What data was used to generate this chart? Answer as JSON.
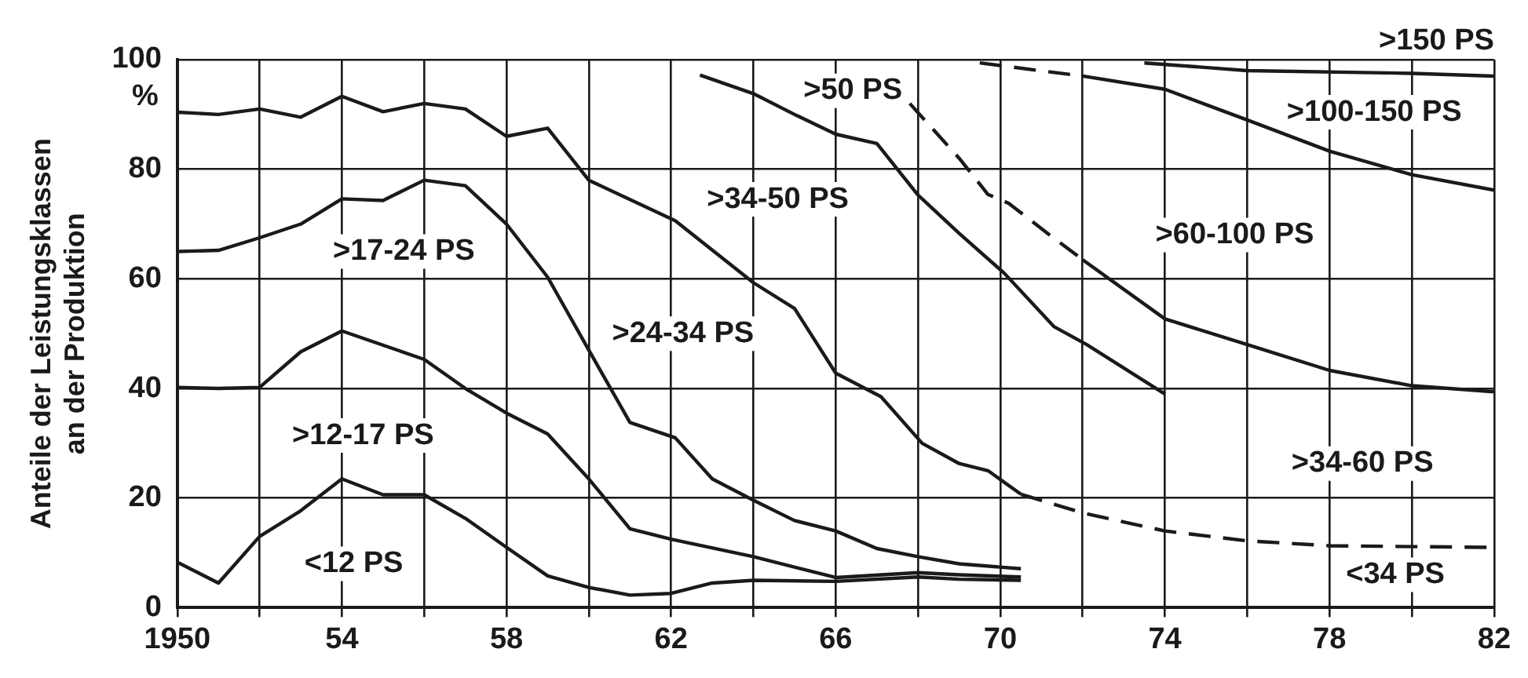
{
  "chart_data": {
    "type": "line",
    "ylabel": "Anteile der Leistungsklassen\nan der Produktion",
    "xlim": [
      1950,
      1982
    ],
    "ylim": [
      0,
      100
    ],
    "xticks": [
      {
        "value": 1950,
        "label": "1950"
      },
      {
        "value": 1952,
        "label": null
      },
      {
        "value": 1954,
        "label": "54"
      },
      {
        "value": 1956,
        "label": null
      },
      {
        "value": 1958,
        "label": "58"
      },
      {
        "value": 1960,
        "label": null
      },
      {
        "value": 1962,
        "label": "62"
      },
      {
        "value": 1964,
        "label": null
      },
      {
        "value": 1966,
        "label": "66"
      },
      {
        "value": 1968,
        "label": null
      },
      {
        "value": 1970,
        "label": "70"
      },
      {
        "value": 1972,
        "label": null
      },
      {
        "value": 1974,
        "label": "74"
      },
      {
        "value": 1976,
        "label": null
      },
      {
        "value": 1978,
        "label": "78"
      },
      {
        "value": 1980,
        "label": null
      },
      {
        "value": 1982,
        "label": "82"
      }
    ],
    "yticks": [
      0,
      20,
      40,
      60,
      80,
      100
    ],
    "grid": true,
    "legend": false,
    "marker": "none",
    "series": [
      {
        "color": "#1a1a1a",
        "line_style": "solid",
        "x": [
          1950,
          1951,
          1952,
          1953,
          1954,
          1955,
          1956,
          1957,
          1958,
          1959,
          1960,
          1962.1,
          1964,
          1965,
          1966,
          1967.1,
          1968.1,
          1969,
          1969.7,
          1970.5
        ],
        "values": [
          90.4,
          90,
          91,
          89.5,
          93.3,
          90.5,
          92,
          91,
          86,
          87.5,
          78,
          70.6,
          59.3,
          54.6,
          42.8,
          38.5,
          30,
          26.3,
          25,
          20.7
        ]
      },
      {
        "color": "#1a1a1a",
        "line_style": "dashed",
        "x": [
          1970.5,
          1972,
          1974,
          1976,
          1978,
          1982
        ],
        "values": [
          20.7,
          17.3,
          14,
          12.2,
          11.3,
          11
        ]
      },
      {
        "color": "#1a1a1a",
        "line_style": "solid",
        "x": [
          1950,
          1951,
          1952,
          1953,
          1954,
          1955,
          1956,
          1957,
          1958,
          1959,
          1960,
          1961,
          1962.1,
          1963,
          1964,
          1965,
          1966,
          1967,
          1968,
          1969,
          1970.5
        ],
        "values": [
          65,
          65.2,
          67.5,
          70,
          74.6,
          74.3,
          78,
          77,
          70,
          60.3,
          47,
          33.8,
          31,
          23.5,
          19.6,
          15.9,
          14,
          10.8,
          9.3,
          8,
          7.1
        ]
      },
      {
        "color": "#1a1a1a",
        "line_style": "solid",
        "x": [
          1950,
          1951,
          1952,
          1953,
          1954,
          1956,
          1957,
          1958,
          1959,
          1960,
          1961,
          1962,
          1964,
          1966,
          1968,
          1969,
          1970.5
        ],
        "values": [
          40.2,
          40,
          40.2,
          46.7,
          50.5,
          45.3,
          40,
          35.5,
          31.7,
          23.5,
          14.4,
          12.5,
          9.3,
          5.5,
          6.4,
          6,
          5.6
        ]
      },
      {
        "color": "#1a1a1a",
        "line_style": "solid",
        "x": [
          1950,
          1951,
          1952,
          1953,
          1954,
          1955,
          1956,
          1957,
          1958,
          1959,
          1960,
          1961,
          1962,
          1963,
          1964,
          1966,
          1968,
          1969,
          1970.5
        ],
        "values": [
          8.3,
          4.5,
          13,
          17.7,
          23.5,
          20.6,
          20.6,
          16.3,
          11,
          5.8,
          3.7,
          2.3,
          2.6,
          4.5,
          5,
          4.8,
          5.6,
          5.2,
          5
        ]
      },
      {
        "color": "#1a1a1a",
        "line_style": "solid",
        "x": [
          1962.7,
          1964,
          1965,
          1966,
          1967,
          1968,
          1969,
          1970.1,
          1971.3,
          1972.1,
          1974
        ],
        "values": [
          97.2,
          93.8,
          90,
          86.4,
          84.7,
          75.3,
          68.3,
          61,
          51.3,
          48,
          39
        ]
      },
      {
        "color": "#1a1a1a",
        "line_style": "dashed",
        "x": [
          1967.8,
          1969,
          1969.7,
          1970.2,
          1971.2,
          1972
        ],
        "values": [
          92,
          82,
          75.4,
          73.8,
          68,
          63.5
        ]
      },
      {
        "color": "#1a1a1a",
        "line_style": "solid",
        "x": [
          1972,
          1974,
          1976,
          1978,
          1980,
          1982
        ],
        "values": [
          63.5,
          52.7,
          48,
          43.3,
          40.5,
          39.4
        ]
      },
      {
        "color": "#1a1a1a",
        "line_style": "dashed",
        "x": [
          1969.5,
          1972
        ],
        "values": [
          99.4,
          97
        ]
      },
      {
        "color": "#1a1a1a",
        "line_style": "solid",
        "x": [
          1972,
          1974,
          1976,
          1978,
          1980,
          1982
        ],
        "values": [
          97,
          94.6,
          89,
          83.3,
          79,
          76.2
        ]
      },
      {
        "color": "#1a1a1a",
        "line_style": "solid",
        "x": [
          1973.5,
          1976,
          1980,
          1982
        ],
        "values": [
          99.4,
          98,
          97.5,
          97
        ]
      }
    ],
    "annotations": [
      "%",
      ">150 PS",
      ">17-24 PS",
      ">12-17 PS",
      "<12 PS",
      ">24-34 PS",
      ">34-50 PS",
      ">50 PS",
      ">100-150 PS",
      ">60-100 PS",
      ">34-60 PS",
      "<34 PS"
    ]
  }
}
